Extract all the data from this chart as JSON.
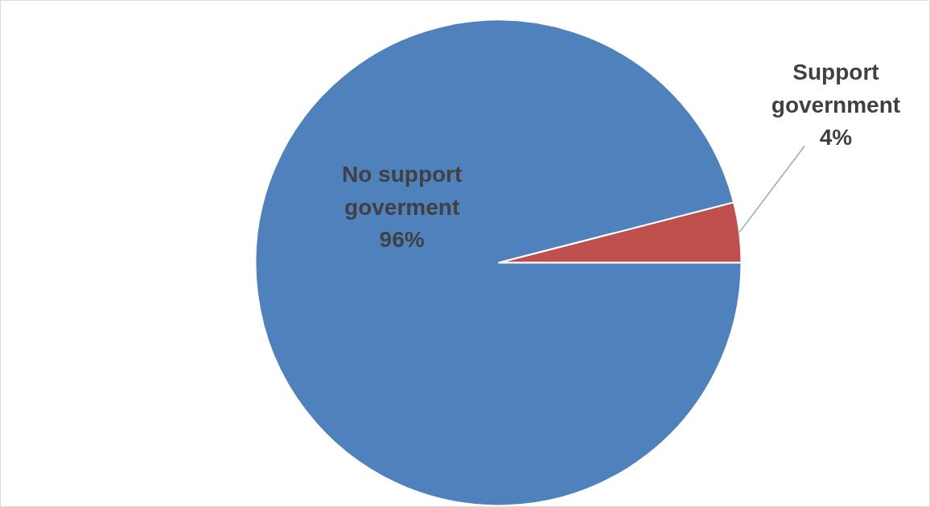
{
  "chart_data": {
    "type": "pie",
    "categories": [
      "Support government",
      "No support goverment"
    ],
    "values": [
      4,
      96
    ],
    "colors": [
      "#c0504d",
      "#4f81bd"
    ],
    "value_labels": [
      "4%",
      "96%"
    ]
  }
}
